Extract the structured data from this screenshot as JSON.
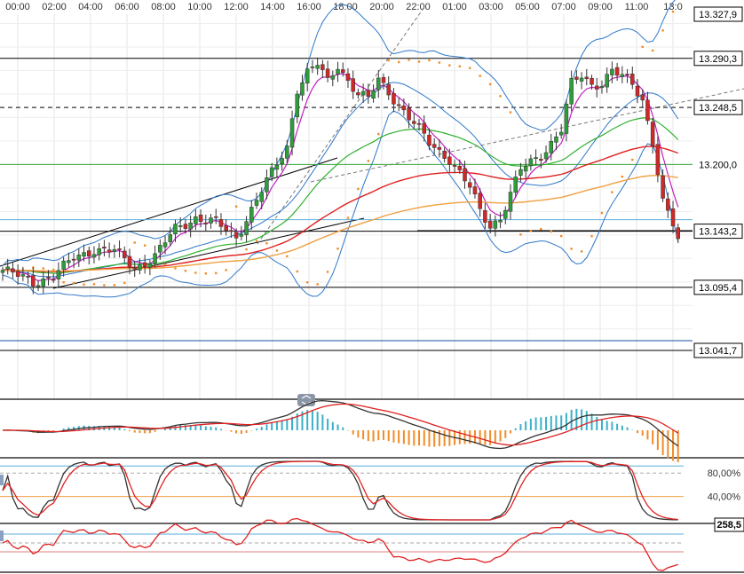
{
  "chart_data": {
    "type": "candlestick",
    "time_axis": {
      "labels": [
        "00:00",
        "02:00",
        "04:00",
        "06:00",
        "08:00",
        "10:00",
        "12:00",
        "14:00",
        "16:00",
        "18:00",
        "20:00",
        "22:00",
        "01:00",
        "03:00",
        "05:00",
        "07:00",
        "09:00",
        "11:00",
        "13:0"
      ]
    },
    "price_axis": {
      "ylim": [
        13020,
        13335
      ],
      "labels": [
        {
          "value": 13327.9,
          "text": "13.327,9",
          "boxed": true
        },
        {
          "value": 13290.3,
          "text": "13.290,3",
          "boxed": true
        },
        {
          "value": 13248.5,
          "text": "13.248,5",
          "boxed": true
        },
        {
          "value": 13200.0,
          "text": "13.200,0",
          "boxed": false
        },
        {
          "value": 13143.2,
          "text": "13.143,2",
          "boxed": true
        },
        {
          "value": 13095.4,
          "text": "13.095,4",
          "boxed": true
        },
        {
          "value": 13041.7,
          "text": "13.041,7",
          "boxed": true
        }
      ]
    },
    "levels": [
      {
        "value": 13290.3,
        "style": "solid",
        "color": "#000000"
      },
      {
        "value": 13248.5,
        "style": "dashed",
        "color": "#000000"
      },
      {
        "value": 13200.0,
        "style": "solid",
        "color": "#3aa63a"
      },
      {
        "value": 13153.0,
        "style": "solid",
        "color": "#5aaed8"
      },
      {
        "value": 13143.2,
        "style": "solid",
        "color": "#000000"
      },
      {
        "value": 13095.4,
        "style": "solid",
        "color": "#000000"
      },
      {
        "value": 13050.0,
        "style": "solid",
        "color": "#1a4fa0"
      },
      {
        "value": 13041.7,
        "style": "solid",
        "color": "#000000"
      }
    ],
    "close_anchors": [
      [
        0,
        13110
      ],
      [
        6,
        13100
      ],
      [
        10,
        13105
      ],
      [
        14,
        13120
      ],
      [
        18,
        13128
      ],
      [
        22,
        13126
      ],
      [
        26,
        13112
      ],
      [
        30,
        13122
      ],
      [
        34,
        13145
      ],
      [
        38,
        13155
      ],
      [
        42,
        13150
      ],
      [
        46,
        13138
      ],
      [
        50,
        13170
      ],
      [
        54,
        13200
      ],
      [
        56,
        13215
      ],
      [
        58,
        13265
      ],
      [
        60,
        13278
      ],
      [
        62,
        13285
      ],
      [
        64,
        13270
      ],
      [
        66,
        13285
      ],
      [
        68,
        13272
      ],
      [
        70,
        13260
      ],
      [
        72,
        13255
      ],
      [
        74,
        13272
      ],
      [
        76,
        13262
      ],
      [
        80,
        13240
      ],
      [
        84,
        13218
      ],
      [
        88,
        13205
      ],
      [
        92,
        13180
      ],
      [
        94,
        13160
      ],
      [
        96,
        13148
      ],
      [
        98,
        13155
      ],
      [
        102,
        13195
      ],
      [
        106,
        13208
      ],
      [
        110,
        13230
      ],
      [
        112,
        13268
      ],
      [
        114,
        13275
      ],
      [
        116,
        13268
      ],
      [
        118,
        13270
      ],
      [
        120,
        13280
      ],
      [
        124,
        13268
      ],
      [
        126,
        13255
      ],
      [
        128,
        13220
      ],
      [
        130,
        13168
      ],
      [
        132,
        13148
      ],
      [
        133,
        13135
      ]
    ],
    "series_colors": {
      "bull": "#2f9d3a",
      "bear": "#d02828",
      "doji": "#333333",
      "bollinger": "#2f78c8",
      "ema_fast": "#c020c0",
      "ema_mid": "#30b030",
      "ema_slow": "#e02020",
      "ema_long": "#f0a040",
      "sar": "#f08c28"
    },
    "indicators": {
      "macd_panel": {
        "label": ""
      },
      "stoch_panel": {
        "labels": [
          {
            "value": 80,
            "text": "80,00%"
          },
          {
            "value": 40,
            "text": "40,00%"
          }
        ]
      },
      "cci_panel": {
        "value_text": "258,5"
      }
    }
  }
}
